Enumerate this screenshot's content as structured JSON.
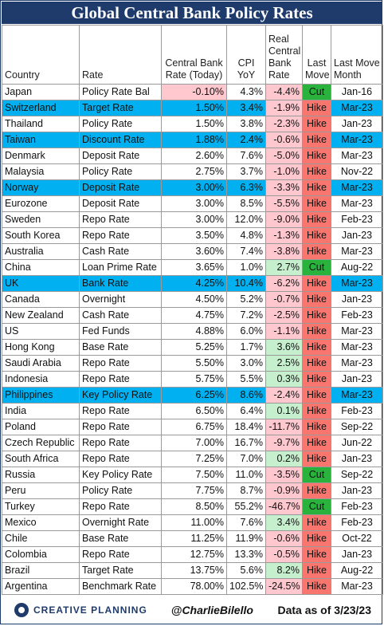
{
  "chart_data": {
    "type": "table",
    "title": "Global Central Bank Policy Rates",
    "columns": [
      "Country",
      "Rate",
      "Central Bank Rate (Today)",
      "CPI YoY",
      "Real Central Bank Rate",
      "Last Move",
      "Last Move Month"
    ],
    "rows": [
      {
        "country": "Japan",
        "rate": "Policy Rate Bal",
        "cb_rate": "-0.10%",
        "cpi": "4.3%",
        "real": "-4.4%",
        "move": "Cut",
        "month": "Jan-16",
        "highlight": false
      },
      {
        "country": "Switzerland",
        "rate": "Target Rate",
        "cb_rate": "1.50%",
        "cpi": "3.4%",
        "real": "-1.9%",
        "move": "Hike",
        "month": "Mar-23",
        "highlight": true
      },
      {
        "country": "Thailand",
        "rate": "Policy Rate",
        "cb_rate": "1.50%",
        "cpi": "3.8%",
        "real": "-2.3%",
        "move": "Hike",
        "month": "Jan-23",
        "highlight": false
      },
      {
        "country": "Taiwan",
        "rate": "Discount Rate",
        "cb_rate": "1.88%",
        "cpi": "2.4%",
        "real": "-0.6%",
        "move": "Hike",
        "month": "Mar-23",
        "highlight": true
      },
      {
        "country": "Denmark",
        "rate": "Deposit Rate",
        "cb_rate": "2.60%",
        "cpi": "7.6%",
        "real": "-5.0%",
        "move": "Hike",
        "month": "Mar-23",
        "highlight": false
      },
      {
        "country": "Malaysia",
        "rate": "Policy Rate",
        "cb_rate": "2.75%",
        "cpi": "3.7%",
        "real": "-1.0%",
        "move": "Hike",
        "month": "Nov-22",
        "highlight": false
      },
      {
        "country": "Norway",
        "rate": "Deposit Rate",
        "cb_rate": "3.00%",
        "cpi": "6.3%",
        "real": "-3.3%",
        "move": "Hike",
        "month": "Mar-23",
        "highlight": true
      },
      {
        "country": "Eurozone",
        "rate": "Deposit Rate",
        "cb_rate": "3.00%",
        "cpi": "8.5%",
        "real": "-5.5%",
        "move": "Hike",
        "month": "Mar-23",
        "highlight": false
      },
      {
        "country": "Sweden",
        "rate": "Repo Rate",
        "cb_rate": "3.00%",
        "cpi": "12.0%",
        "real": "-9.0%",
        "move": "Hike",
        "month": "Feb-23",
        "highlight": false
      },
      {
        "country": "South Korea",
        "rate": "Repo Rate",
        "cb_rate": "3.50%",
        "cpi": "4.8%",
        "real": "-1.3%",
        "move": "Hike",
        "month": "Jan-23",
        "highlight": false
      },
      {
        "country": "Australia",
        "rate": "Cash Rate",
        "cb_rate": "3.60%",
        "cpi": "7.4%",
        "real": "-3.8%",
        "move": "Hike",
        "month": "Mar-23",
        "highlight": false
      },
      {
        "country": "China",
        "rate": "Loan Prime Rate",
        "cb_rate": "3.65%",
        "cpi": "1.0%",
        "real": "2.7%",
        "move": "Cut",
        "month": "Aug-22",
        "highlight": false
      },
      {
        "country": "UK",
        "rate": "Bank Rate",
        "cb_rate": "4.25%",
        "cpi": "10.4%",
        "real": "-6.2%",
        "move": "Hike",
        "month": "Mar-23",
        "highlight": true
      },
      {
        "country": "Canada",
        "rate": "Overnight",
        "cb_rate": "4.50%",
        "cpi": "5.2%",
        "real": "-0.7%",
        "move": "Hike",
        "month": "Jan-23",
        "highlight": false
      },
      {
        "country": "New Zealand",
        "rate": "Cash Rate",
        "cb_rate": "4.75%",
        "cpi": "7.2%",
        "real": "-2.5%",
        "move": "Hike",
        "month": "Feb-23",
        "highlight": false
      },
      {
        "country": "US",
        "rate": "Fed Funds",
        "cb_rate": "4.88%",
        "cpi": "6.0%",
        "real": "-1.1%",
        "move": "Hike",
        "month": "Mar-23",
        "highlight": false
      },
      {
        "country": "Hong Kong",
        "rate": "Base Rate",
        "cb_rate": "5.25%",
        "cpi": "1.7%",
        "real": "3.6%",
        "move": "Hike",
        "month": "Mar-23",
        "highlight": false
      },
      {
        "country": "Saudi Arabia",
        "rate": "Repo Rate",
        "cb_rate": "5.50%",
        "cpi": "3.0%",
        "real": "2.5%",
        "move": "Hike",
        "month": "Mar-23",
        "highlight": false
      },
      {
        "country": "Indonesia",
        "rate": "Repo Rate",
        "cb_rate": "5.75%",
        "cpi": "5.5%",
        "real": "0.3%",
        "move": "Hike",
        "month": "Jan-23",
        "highlight": false
      },
      {
        "country": "Philippines",
        "rate": "Key Policy Rate",
        "cb_rate": "6.25%",
        "cpi": "8.6%",
        "real": "-2.4%",
        "move": "Hike",
        "month": "Mar-23",
        "highlight": true
      },
      {
        "country": "India",
        "rate": "Repo Rate",
        "cb_rate": "6.50%",
        "cpi": "6.4%",
        "real": "0.1%",
        "move": "Hike",
        "month": "Feb-23",
        "highlight": false
      },
      {
        "country": "Poland",
        "rate": "Repo Rate",
        "cb_rate": "6.75%",
        "cpi": "18.4%",
        "real": "-11.7%",
        "move": "Hike",
        "month": "Sep-22",
        "highlight": false
      },
      {
        "country": "Czech Republic",
        "rate": "Repo Rate",
        "cb_rate": "7.00%",
        "cpi": "16.7%",
        "real": "-9.7%",
        "move": "Hike",
        "month": "Jun-22",
        "highlight": false
      },
      {
        "country": "South Africa",
        "rate": "Repo Rate",
        "cb_rate": "7.25%",
        "cpi": "7.0%",
        "real": "0.2%",
        "move": "Hike",
        "month": "Jan-23",
        "highlight": false
      },
      {
        "country": "Russia",
        "rate": "Key Policy Rate",
        "cb_rate": "7.50%",
        "cpi": "11.0%",
        "real": "-3.5%",
        "move": "Cut",
        "month": "Sep-22",
        "highlight": false
      },
      {
        "country": "Peru",
        "rate": "Policy Rate",
        "cb_rate": "7.75%",
        "cpi": "8.7%",
        "real": "-0.9%",
        "move": "Hike",
        "month": "Jan-23",
        "highlight": false
      },
      {
        "country": "Turkey",
        "rate": "Repo Rate",
        "cb_rate": "8.50%",
        "cpi": "55.2%",
        "real": "-46.7%",
        "move": "Cut",
        "month": "Feb-23",
        "highlight": false
      },
      {
        "country": "Mexico",
        "rate": "Overnight Rate",
        "cb_rate": "11.00%",
        "cpi": "7.6%",
        "real": "3.4%",
        "move": "Hike",
        "month": "Feb-23",
        "highlight": false
      },
      {
        "country": "Chile",
        "rate": "Base Rate",
        "cb_rate": "11.25%",
        "cpi": "11.9%",
        "real": "-0.6%",
        "move": "Hike",
        "month": "Oct-22",
        "highlight": false
      },
      {
        "country": "Colombia",
        "rate": "Repo Rate",
        "cb_rate": "12.75%",
        "cpi": "13.3%",
        "real": "-0.5%",
        "move": "Hike",
        "month": "Jan-23",
        "highlight": false
      },
      {
        "country": "Brazil",
        "rate": "Target Rate",
        "cb_rate": "13.75%",
        "cpi": "5.6%",
        "real": "8.2%",
        "move": "Hike",
        "month": "Aug-22",
        "highlight": false
      },
      {
        "country": "Argentina",
        "rate": "Benchmark Rate",
        "cb_rate": "78.00%",
        "cpi": "102.5%",
        "real": "-24.5%",
        "move": "Hike",
        "month": "Mar-23",
        "highlight": false
      }
    ],
    "colors": {
      "header_bg": "#1f3b6b",
      "highlight": "#00b0f0",
      "negative_bg": "#ffc7ce",
      "positive_bg": "#c6efce",
      "hike": "#f8766d",
      "cut": "#29b33c"
    }
  },
  "footer": {
    "logo_text": "CREATIVE PLANNING",
    "logo_icon": "creative-planning-logo-icon",
    "handle": "@CharlieBilello",
    "as_of": "Data as of 3/23/23"
  }
}
